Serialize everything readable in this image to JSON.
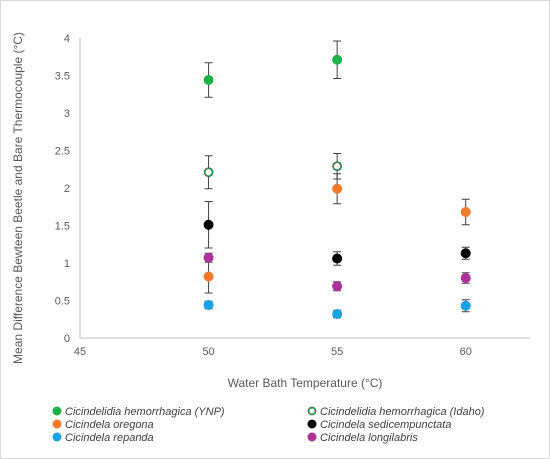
{
  "chart_data": {
    "type": "scatter",
    "title": "",
    "xlabel": "Water Bath Temperature (°C)",
    "ylabel": "Mean Difference Bewteen Beetle and Bare Thermocouple (°C)",
    "xlim": [
      45,
      62.5
    ],
    "ylim": [
      0,
      4
    ],
    "x_ticks": [
      "45",
      "50",
      "55",
      "60"
    ],
    "y_ticks": [
      "0",
      "0.5",
      "1",
      "1.5",
      "2",
      "2.5",
      "3",
      "3.5",
      "4"
    ],
    "grid": false,
    "legend_position": "bottom",
    "series": [
      {
        "name": "Cicindelidia hemorrhagica (YNP)",
        "color": "#22b04b",
        "filled": true,
        "x": [
          50,
          55
        ],
        "y": [
          3.44,
          3.71
        ],
        "err": [
          0.23,
          0.25
        ]
      },
      {
        "name": "Cicindelidia hemorrhagica (Idaho)",
        "color": "#000000",
        "filled": false,
        "fill": "#ffffff",
        "x": [
          50,
          55
        ],
        "y": [
          2.21,
          2.29
        ],
        "err": [
          0.22,
          0.17
        ]
      },
      {
        "name": "Cicindela oregona",
        "color": "#f07a2a",
        "filled": true,
        "x": [
          50,
          55,
          60
        ],
        "y": [
          0.82,
          1.99,
          1.68
        ],
        "err": [
          0.22,
          0.2,
          0.17
        ]
      },
      {
        "name": "Cicindela sedicempunctata",
        "color": "#000000",
        "filled": true,
        "x": [
          50,
          55,
          60
        ],
        "y": [
          1.51,
          1.06,
          1.13
        ],
        "err": [
          0.31,
          0.09,
          0.08
        ]
      },
      {
        "name": "Cicindela repanda",
        "color": "#1ba1e2",
        "filled": true,
        "x": [
          50,
          55,
          60
        ],
        "y": [
          0.44,
          0.32,
          0.43
        ],
        "err": [
          0.05,
          0.05,
          0.08
        ]
      },
      {
        "name": "Cicindela longilabris",
        "color": "#b0309a",
        "filled": true,
        "x": [
          50,
          55,
          60
        ],
        "y": [
          1.07,
          0.69,
          0.8
        ],
        "err": [
          0.06,
          0.06,
          0.07
        ]
      }
    ]
  }
}
